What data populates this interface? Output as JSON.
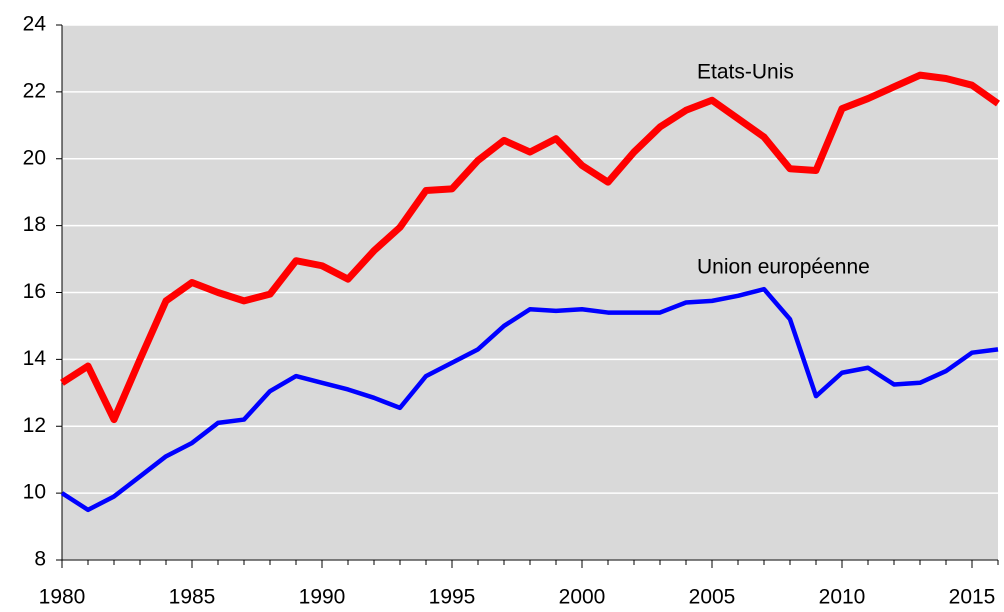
{
  "chart_data": {
    "type": "line",
    "x": [
      1980,
      1981,
      1982,
      1983,
      1984,
      1985,
      1986,
      1987,
      1988,
      1989,
      1990,
      1991,
      1992,
      1993,
      1994,
      1995,
      1996,
      1997,
      1998,
      1999,
      2000,
      2001,
      2002,
      2003,
      2004,
      2005,
      2006,
      2007,
      2008,
      2009,
      2010,
      2011,
      2012,
      2013,
      2014,
      2015,
      2016
    ],
    "series": [
      {
        "name": "Etats-Unis",
        "color": "#ff0000",
        "values": [
          13.3,
          13.8,
          12.2,
          14.0,
          15.75,
          16.3,
          16.0,
          15.75,
          15.95,
          16.95,
          16.8,
          16.4,
          17.25,
          17.95,
          19.05,
          19.1,
          19.95,
          20.55,
          20.2,
          20.6,
          19.8,
          19.3,
          20.2,
          20.95,
          21.45,
          21.75,
          21.2,
          20.65,
          19.7,
          19.65,
          21.5,
          21.8,
          22.15,
          22.5,
          22.4,
          22.2,
          21.65
        ]
      },
      {
        "name": "Union européenne",
        "color": "#0000ff",
        "values": [
          10.0,
          9.5,
          9.9,
          10.5,
          11.1,
          11.5,
          12.1,
          12.2,
          13.05,
          13.5,
          13.3,
          13.1,
          12.85,
          12.55,
          13.5,
          13.9,
          14.3,
          15.0,
          15.5,
          15.45,
          15.5,
          15.4,
          15.4,
          15.4,
          15.7,
          15.75,
          15.9,
          16.1,
          15.2,
          12.9,
          13.6,
          13.75,
          13.25,
          13.3,
          13.65,
          14.2,
          14.3
        ]
      }
    ],
    "xlim": [
      1980,
      2016
    ],
    "xticks": [
      1980,
      1985,
      1990,
      1995,
      2000,
      2005,
      2010,
      2015
    ],
    "ylim": [
      8,
      24
    ],
    "yticks": [
      8,
      10,
      12,
      14,
      16,
      18,
      20,
      22,
      24
    ],
    "grid": true
  }
}
